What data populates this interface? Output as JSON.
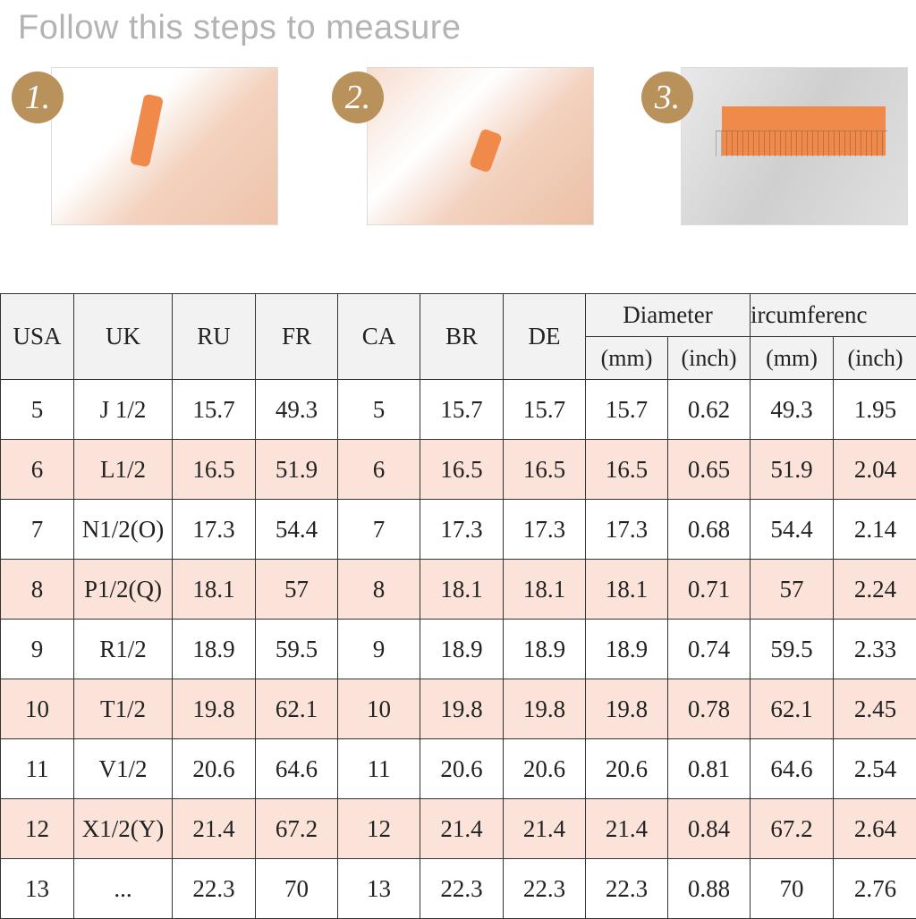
{
  "title": "Follow this steps to measure",
  "steps": [
    {
      "number": "1.",
      "icon": "hand-wrap-tape-photo"
    },
    {
      "number": "2.",
      "icon": "hand-mark-tape-photo"
    },
    {
      "number": "3.",
      "icon": "tape-on-ruler-photo"
    }
  ],
  "colors": {
    "header_bg": "#f2f2f2",
    "stripe_bg": "#fbe3da",
    "badge": "#b9915a",
    "tape": "#f08a4b"
  },
  "table": {
    "headers": [
      "USA",
      "UK",
      "RU",
      "FR",
      "CA",
      "BR",
      "DE"
    ],
    "group_headers": [
      "Diameter",
      "ircumferenc"
    ],
    "sub_headers": [
      "(mm)",
      "(inch)",
      "(mm)",
      "(inch)"
    ],
    "rows": [
      [
        "5",
        "J 1/2",
        "15.7",
        "49.3",
        "5",
        "15.7",
        "15.7",
        "15.7",
        "0.62",
        "49.3",
        "1.95"
      ],
      [
        "6",
        "L1/2",
        "16.5",
        "51.9",
        "6",
        "16.5",
        "16.5",
        "16.5",
        "0.65",
        "51.9",
        "2.04"
      ],
      [
        "7",
        "N1/2(O)",
        "17.3",
        "54.4",
        "7",
        "17.3",
        "17.3",
        "17.3",
        "0.68",
        "54.4",
        "2.14"
      ],
      [
        "8",
        "P1/2(Q)",
        "18.1",
        "57",
        "8",
        "18.1",
        "18.1",
        "18.1",
        "0.71",
        "57",
        "2.24"
      ],
      [
        "9",
        "R1/2",
        "18.9",
        "59.5",
        "9",
        "18.9",
        "18.9",
        "18.9",
        "0.74",
        "59.5",
        "2.33"
      ],
      [
        "10",
        "T1/2",
        "19.8",
        "62.1",
        "10",
        "19.8",
        "19.8",
        "19.8",
        "0.78",
        "62.1",
        "2.45"
      ],
      [
        "11",
        "V1/2",
        "20.6",
        "64.6",
        "11",
        "20.6",
        "20.6",
        "20.6",
        "0.81",
        "64.6",
        "2.54"
      ],
      [
        "12",
        "X1/2(Y)",
        "21.4",
        "67.2",
        "12",
        "21.4",
        "21.4",
        "21.4",
        "0.84",
        "67.2",
        "2.64"
      ],
      [
        "13",
        "...",
        "22.3",
        "70",
        "13",
        "22.3",
        "22.3",
        "22.3",
        "0.88",
        "70",
        "2.76"
      ]
    ]
  }
}
